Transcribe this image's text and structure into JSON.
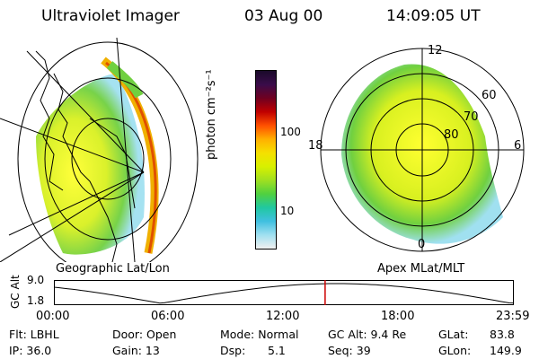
{
  "header": {
    "instrument": "Ultraviolet Imager",
    "date": "03 Aug 00",
    "time": "14:09:05 UT"
  },
  "geo_panel": {
    "caption": "Geographic Lat/Lon"
  },
  "apex_panel": {
    "caption": "Apex MLat/MLT",
    "mlt_labels": {
      "top": "12",
      "right": "6",
      "bottom": "0",
      "left": "18"
    },
    "lat_labels": [
      "60",
      "70",
      "80"
    ]
  },
  "colorbar": {
    "label": "photon cm⁻²s⁻¹",
    "ticks": [
      "100",
      "10"
    ],
    "colors": [
      "#1a0a2a",
      "#3a0c4a",
      "#700020",
      "#c00000",
      "#ff5000",
      "#ffb000",
      "#f5e000",
      "#d8f000",
      "#a0e020",
      "#50d040",
      "#20c8a0",
      "#40c0e0",
      "#a0e0f0",
      "#f0f0f0"
    ]
  },
  "timeline": {
    "axis_label": "GC Alt",
    "y_ticks": [
      "9.0",
      "1.8"
    ],
    "x_ticks": [
      "00:00",
      "06:00",
      "12:00",
      "18:00",
      "23:59"
    ],
    "marker_time": "14:09:05",
    "marker_color": "#cc0000"
  },
  "status": {
    "flt": "Flt: LBHL",
    "ip": "IP: 36.0",
    "door": "Door: Open",
    "gain": "Gain: 13",
    "mode": "Mode: Normal",
    "dsp": "Dsp:",
    "dsp_val": "5.1",
    "gc_alt": "GC Alt: 9.4 Re",
    "seq": "Seq: 39",
    "glat": "GLat:",
    "glat_val": "83.8",
    "glon": "GLon:",
    "glon_val": "149.9"
  }
}
